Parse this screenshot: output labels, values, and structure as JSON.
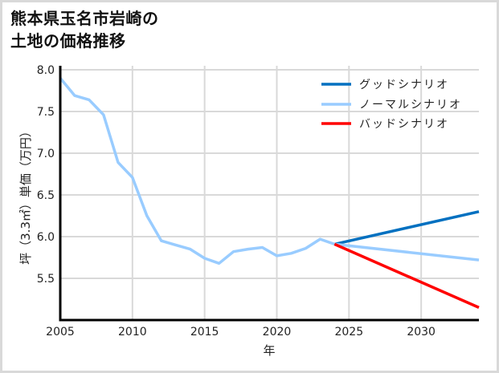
{
  "title_line1": "熊本県玉名市岩崎の",
  "title_line2": "土地の価格推移",
  "chart_data": {
    "type": "line",
    "title": "熊本県玉名市岩崎の土地の価格推移",
    "xlabel": "年",
    "ylabel": "坪（3.3㎡）単価（万円）",
    "xlim": [
      2005,
      2034
    ],
    "ylim": [
      5.0,
      8.05
    ],
    "xticks": [
      2005,
      2010,
      2015,
      2020,
      2025,
      2030
    ],
    "yticks": [
      5.5,
      6.0,
      6.5,
      7.0,
      7.5,
      8.0
    ],
    "ytick_labels": [
      "5.5",
      "6.0",
      "6.5",
      "7.0",
      "7.5",
      "8.0"
    ],
    "grid": true,
    "legend_position": "upper right",
    "series": [
      {
        "name": "グッドシナリオ",
        "color": "#0070c0",
        "x": [
          2024,
          2034
        ],
        "values": [
          5.91,
          6.3
        ]
      },
      {
        "name": "ノーマルシナリオ",
        "color": "#99ccff",
        "x": [
          2005,
          2006,
          2007,
          2008,
          2009,
          2010,
          2011,
          2012,
          2013,
          2014,
          2015,
          2016,
          2017,
          2018,
          2019,
          2020,
          2021,
          2022,
          2023,
          2024,
          2034
        ],
        "values": [
          7.9,
          7.69,
          7.64,
          7.46,
          6.89,
          6.71,
          6.25,
          5.95,
          5.9,
          5.85,
          5.74,
          5.68,
          5.82,
          5.85,
          5.87,
          5.77,
          5.8,
          5.86,
          5.97,
          5.91,
          5.72
        ]
      },
      {
        "name": "バッドシナリオ",
        "color": "#ff0000",
        "x": [
          2024,
          2034
        ],
        "values": [
          5.91,
          5.15
        ]
      }
    ]
  }
}
